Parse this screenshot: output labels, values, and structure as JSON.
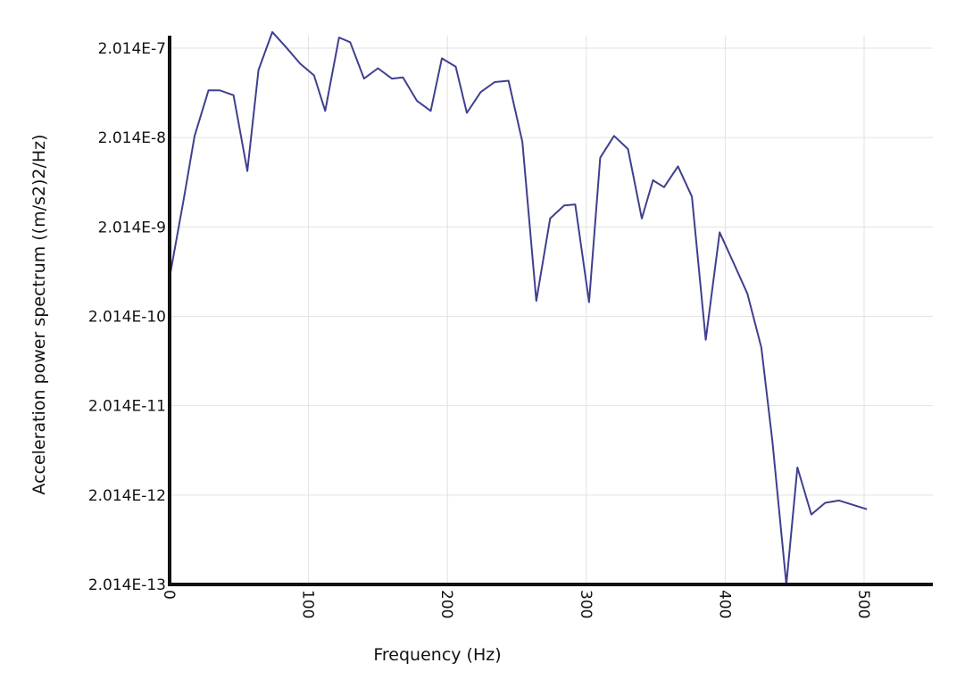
{
  "chart_data": {
    "type": "line",
    "title": "",
    "xlabel": "Frequency (Hz)",
    "ylabel": "Acceleration power spectrum ((m/s2)2/Hz)",
    "x_scale": "linear",
    "y_scale": "log",
    "xlim": [
      0,
      550
    ],
    "ylim": [
      2.014e-13,
      3e-07
    ],
    "x_ticks": [
      0,
      100,
      200,
      300,
      400,
      500
    ],
    "x_tick_labels": [
      "0",
      "100",
      "200",
      "300",
      "400",
      "500"
    ],
    "y_ticks": [
      2.014e-13,
      2.014e-12,
      2.014e-11,
      2.014e-10,
      2.014e-09,
      2.014e-08,
      2.014e-07
    ],
    "y_tick_labels": [
      "2.014E-13",
      "2.014E-12",
      "2.014E-11",
      "2.014E-10",
      "2.014E-9",
      "2.014E-8",
      "2.014E-7"
    ],
    "grid": true,
    "legend": "none",
    "series_color": "#3f3f8f",
    "series": [
      {
        "x": [
          0,
          10,
          18,
          28,
          36,
          46,
          56,
          64,
          74,
          84,
          94,
          104,
          112,
          122,
          130,
          140,
          150,
          160,
          168,
          178,
          188,
          196,
          206,
          214,
          224,
          234,
          244,
          254,
          264,
          274,
          284,
          292,
          302,
          310,
          320,
          330,
          340,
          348,
          356,
          366,
          376,
          386,
          396,
          406,
          416,
          426,
          434,
          444,
          452,
          462,
          472,
          482,
          502
        ],
        "y": [
          5.5e-10,
          4e-09,
          2.1e-08,
          6.8e-08,
          6.8e-08,
          6e-08,
          8.5e-09,
          1.15e-07,
          3.05e-07,
          2.05e-07,
          1.35e-07,
          1e-07,
          4e-08,
          2.65e-07,
          2.35e-07,
          9.2e-08,
          1.2e-07,
          9.2e-08,
          9.5e-08,
          5.2e-08,
          4e-08,
          1.55e-07,
          1.25e-07,
          3.8e-08,
          6.5e-08,
          8.4e-08,
          8.7e-08,
          1.8e-08,
          3e-10,
          2.5e-09,
          3.5e-09,
          3.6e-09,
          2.9e-10,
          1.2e-08,
          2.1e-08,
          1.5e-08,
          2.5e-09,
          6.7e-09,
          5.6e-09,
          9.6e-09,
          4.4e-09,
          1.1e-10,
          1.75e-09,
          8e-10,
          3.6e-10,
          9e-11,
          8e-12,
          2.014e-13,
          4.1e-12,
          1.22e-12,
          1.65e-12,
          1.75e-12,
          1.4e-12
        ]
      }
    ]
  }
}
